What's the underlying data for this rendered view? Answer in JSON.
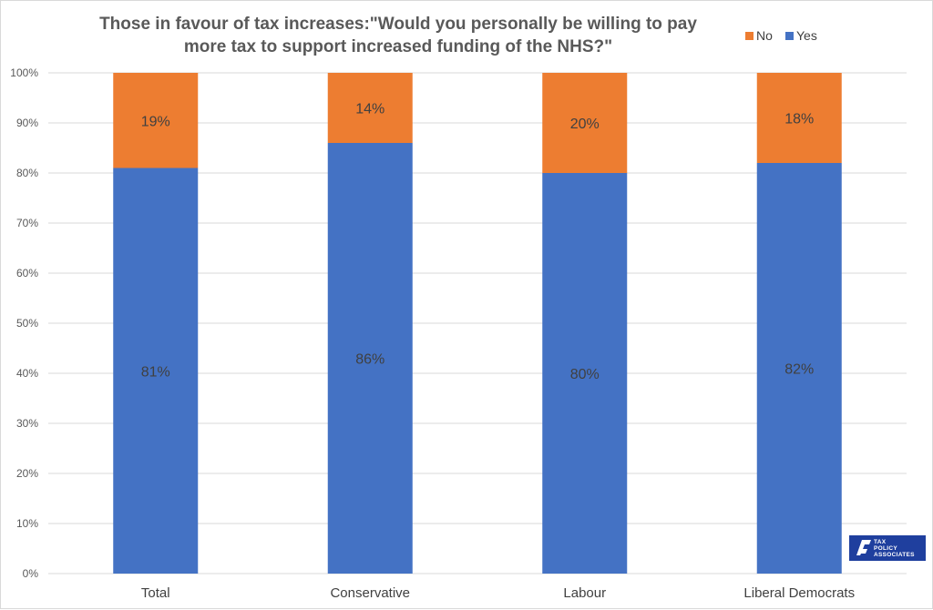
{
  "chart_data": {
    "type": "bar",
    "stacked": true,
    "title_lines": [
      "Those in favour of tax increases:\"Would you personally be willing to pay",
      "more tax to support increased funding of the NHS?\""
    ],
    "categories": [
      "Total",
      "Conservative",
      "Labour",
      "Liberal Democrats"
    ],
    "series": [
      {
        "name": "Yes",
        "color": "#4472C4",
        "values": [
          81,
          86,
          80,
          82
        ],
        "labels": [
          "81%",
          "86%",
          "80%",
          "82%"
        ]
      },
      {
        "name": "No",
        "color": "#ED7D31",
        "values": [
          19,
          14,
          20,
          18
        ],
        "labels": [
          "19%",
          "14%",
          "20%",
          "18%"
        ]
      }
    ],
    "legend": {
      "placement": "top-right",
      "entries": [
        {
          "name": "No",
          "color": "#ED7D31"
        },
        {
          "name": "Yes",
          "color": "#4472C4"
        }
      ]
    },
    "y_ticks": [
      "0%",
      "10%",
      "20%",
      "30%",
      "40%",
      "50%",
      "60%",
      "70%",
      "80%",
      "90%",
      "100%"
    ],
    "ylim": [
      0,
      100
    ],
    "grid": true,
    "xlabel": "",
    "ylabel": ""
  },
  "logo": {
    "lines": [
      "TAX",
      "POLICY",
      "ASSOCIATES"
    ],
    "color": "#1F3F9E"
  }
}
